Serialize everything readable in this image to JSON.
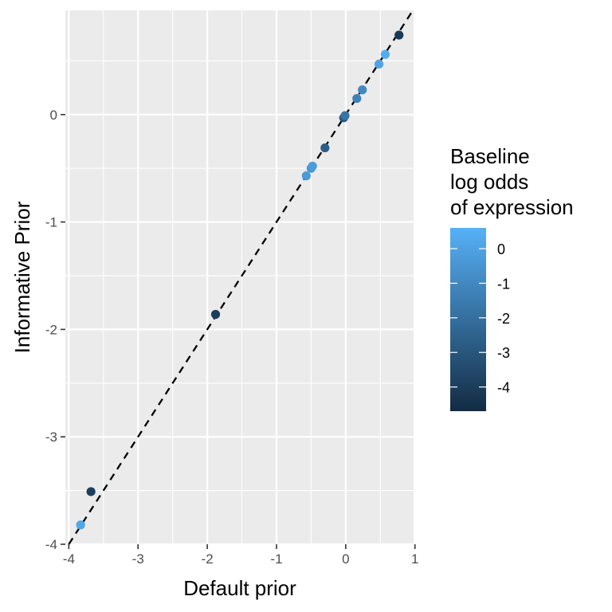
{
  "chart_data": {
    "type": "scatter",
    "xlabel": "Default prior",
    "ylabel": "Informative Prior",
    "xlim": [
      -4.05,
      0.98
    ],
    "ylim": [
      -4.0,
      0.97
    ],
    "x_ticks": [
      -4,
      -3,
      -2,
      -1,
      0,
      1
    ],
    "x_tick_labels": [
      "-4",
      "-3",
      "-2",
      "-1",
      "0",
      "1"
    ],
    "y_ticks": [
      -4,
      -3,
      -2,
      -1,
      0
    ],
    "y_tick_labels": [
      "-4",
      "-3",
      "-2",
      "-1",
      "0"
    ],
    "grid": true,
    "reference_line": {
      "type": "identity",
      "style": "dashed",
      "color": "#000000"
    },
    "points": [
      {
        "x": -3.83,
        "y": -3.82,
        "color_value": 0.2
      },
      {
        "x": -3.68,
        "y": -3.51,
        "color_value": -3.9
      },
      {
        "x": -1.88,
        "y": -1.86,
        "color_value": -4.0
      },
      {
        "x": -0.57,
        "y": -0.57,
        "color_value": -0.3
      },
      {
        "x": -0.5,
        "y": -0.5,
        "color_value": -0.6
      },
      {
        "x": -0.48,
        "y": -0.48,
        "color_value": -0.2
      },
      {
        "x": -0.3,
        "y": -0.31,
        "color_value": -2.7
      },
      {
        "x": -0.03,
        "y": -0.03,
        "color_value": -3.0
      },
      {
        "x": -0.01,
        "y": -0.01,
        "color_value": -1.8
      },
      {
        "x": 0.16,
        "y": 0.15,
        "color_value": -1.3
      },
      {
        "x": 0.24,
        "y": 0.23,
        "color_value": -1.0
      },
      {
        "x": 0.48,
        "y": 0.47,
        "color_value": 0.1
      },
      {
        "x": 0.57,
        "y": 0.56,
        "color_value": 0.4
      },
      {
        "x": 0.77,
        "y": 0.74,
        "color_value": -4.1
      }
    ],
    "color_scale": {
      "title_lines": [
        "Baseline",
        "log odds",
        "of expression"
      ],
      "low_color": "#132B43",
      "high_color": "#56B1F7",
      "range": [
        -4.7,
        0.6
      ],
      "breaks": [
        0,
        -1,
        -2,
        -3,
        -4
      ],
      "break_labels": [
        "0",
        "-1",
        "-2",
        "-3",
        "-4"
      ],
      "position": "right"
    }
  }
}
